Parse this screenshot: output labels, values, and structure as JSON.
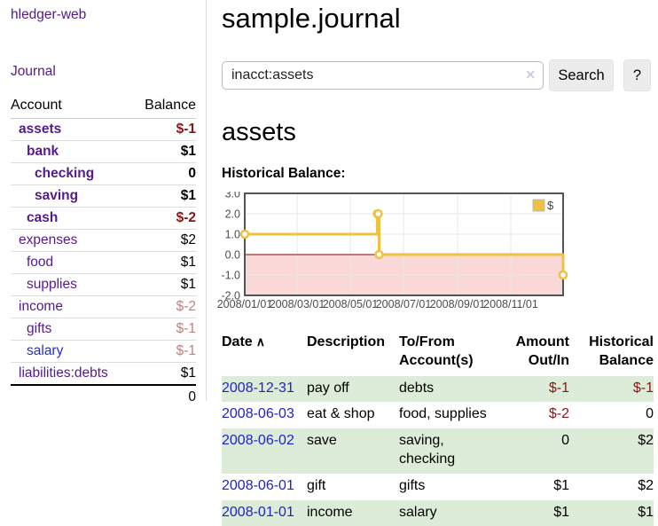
{
  "sidebar": {
    "brand": "hledger-web",
    "journal_link": "Journal",
    "accounts": {
      "col_account": "Account",
      "col_balance": "Balance",
      "rows": [
        {
          "name": "assets",
          "balance": "$-1"
        },
        {
          "name": "bank",
          "balance": "$1"
        },
        {
          "name": "checking",
          "balance": "0"
        },
        {
          "name": "saving",
          "balance": "$1"
        },
        {
          "name": "cash",
          "balance": "$-2"
        },
        {
          "name": "expenses",
          "balance": "$2"
        },
        {
          "name": "food",
          "balance": "$1"
        },
        {
          "name": "supplies",
          "balance": "$1"
        },
        {
          "name": "income",
          "balance": "$-2"
        },
        {
          "name": "gifts",
          "balance": "$-1"
        },
        {
          "name": "salary",
          "balance": "$-1"
        },
        {
          "name": "liabilities:debts",
          "balance": "$1"
        }
      ],
      "total": "0"
    }
  },
  "header": {
    "title": "sample.journal"
  },
  "search": {
    "value": "inacct:assets",
    "clear_icon": "✕",
    "button_label": "Search",
    "help_label": "?"
  },
  "account_page": {
    "heading": "assets",
    "chart_title": "Historical Balance:"
  },
  "register": {
    "headers": {
      "date": "Date",
      "sort_icon": "∧",
      "description": "Description",
      "accounts": "To/From\nAccount(s)",
      "amount": "Amount\nOut/In",
      "balance": "Historical\nBalance"
    },
    "rows": [
      {
        "date": "2008-12-31",
        "description": "pay off",
        "accounts": "debts",
        "amount": "$-1",
        "balance": "$-1"
      },
      {
        "date": "2008-06-03",
        "description": "eat & shop",
        "accounts": "food, supplies",
        "amount": "$-2",
        "balance": "0"
      },
      {
        "date": "2008-06-02",
        "description": "save",
        "accounts": "saving,\nchecking",
        "amount": "0",
        "balance": "$2"
      },
      {
        "date": "2008-06-01",
        "description": "gift",
        "accounts": "gifts",
        "amount": "$1",
        "balance": "$2"
      },
      {
        "date": "2008-01-01",
        "description": "income",
        "accounts": "salary",
        "amount": "$1",
        "balance": "$1"
      }
    ]
  },
  "chart_data": {
    "type": "line",
    "title": "Historical Balance:",
    "series": [
      {
        "name": "$",
        "color": "#edc240",
        "steps": true,
        "points": [
          [
            "2008-01-01",
            1
          ],
          [
            "2008-06-01",
            2
          ],
          [
            "2008-06-02",
            2
          ],
          [
            "2008-06-03",
            0
          ],
          [
            "2008-12-31",
            -1
          ]
        ]
      }
    ],
    "x_ticks": [
      "2008/01/01",
      "2008/03/01",
      "2008/05/01",
      "2008/07/01",
      "2008/09/01",
      "2008/11/01"
    ],
    "y_ticks": [
      3,
      2,
      1,
      0,
      -1,
      -2
    ],
    "xlim": [
      "2008-01-01",
      "2008-12-31"
    ],
    "ylim": [
      -2,
      3
    ],
    "grid": true,
    "legend": {
      "label": "$",
      "position": "top-right"
    },
    "negative_region_fill": "#fbd8d8",
    "zero_line_color": "#8b0000"
  },
  "colors": {
    "accent_purple": "#551a8b",
    "link_blue": "#2222cc",
    "negative_dark": "#8b1414",
    "negative_soft": "#c0807f",
    "row_stripe_green": "#ddecd8",
    "series_yellow": "#edc240",
    "negative_region_pink": "#fbd8d8",
    "zero_line_red": "#8b0000"
  }
}
